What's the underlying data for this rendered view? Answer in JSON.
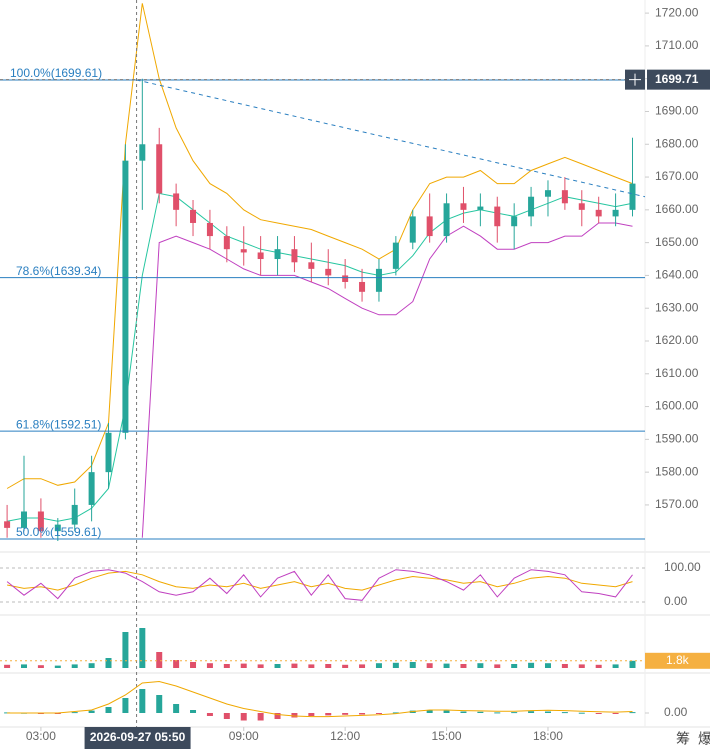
{
  "chart_data": [
    {
      "type": "candlestick",
      "xlim": [
        1.79,
        20.87
      ],
      "ylim": [
        1559,
        1724
      ],
      "xticks": [
        {
          "value": 3,
          "label": "03:00"
        },
        {
          "value": 9,
          "label": "09:00"
        },
        {
          "value": 12,
          "label": "12:00"
        },
        {
          "value": 15,
          "label": "15:00"
        },
        {
          "value": 18,
          "label": "18:00"
        }
      ],
      "yticks": [
        {
          "value": 1570,
          "label": "1570.00"
        },
        {
          "value": 1580,
          "label": "1580.00"
        },
        {
          "value": 1590,
          "label": "1590.00"
        },
        {
          "value": 1600,
          "label": "1600.00"
        },
        {
          "value": 1610,
          "label": "1610.00"
        },
        {
          "value": 1620,
          "label": "1620.00"
        },
        {
          "value": 1630,
          "label": "1630.00"
        },
        {
          "value": 1640,
          "label": "1640.00"
        },
        {
          "value": 1650,
          "label": "1650.00"
        },
        {
          "value": 1660,
          "label": "1660.00"
        },
        {
          "value": 1670,
          "label": "1670.00"
        },
        {
          "value": 1680,
          "label": "1680.00"
        },
        {
          "value": 1690,
          "label": "1690.00"
        },
        {
          "value": 1700,
          "label": "1700.00"
        },
        {
          "value": 1710,
          "label": "1710.00"
        },
        {
          "value": 1720,
          "label": "1720.00"
        }
      ],
      "up_color": "#26a69a",
      "down_color": "#e0506a",
      "x": [
        2,
        2.5,
        3,
        3.5,
        4,
        4.5,
        5,
        5.5,
        6,
        6.5,
        7,
        7.5,
        8,
        8.5,
        9,
        9.5,
        10,
        10.5,
        11,
        11.5,
        12,
        12.5,
        13,
        13.5,
        14,
        14.5,
        15,
        15.5,
        16,
        16.5,
        17,
        17.5,
        18,
        18.5,
        19,
        19.5,
        20,
        20.5
      ],
      "open": [
        1565,
        1563,
        1568,
        1562,
        1564,
        1570,
        1580,
        1592,
        1675,
        1680,
        1665,
        1660,
        1656,
        1652,
        1648,
        1647,
        1645,
        1648,
        1644,
        1642,
        1640,
        1638,
        1635,
        1642,
        1650,
        1658,
        1652,
        1662,
        1660,
        1661,
        1655,
        1658,
        1664,
        1666,
        1662,
        1660,
        1658,
        1660
      ],
      "high": [
        1570,
        1585,
        1572,
        1566,
        1575,
        1585,
        1595,
        1680,
        1700,
        1685,
        1668,
        1663,
        1660,
        1655,
        1655,
        1652,
        1652,
        1652,
        1650,
        1648,
        1645,
        1642,
        1645,
        1652,
        1660,
        1665,
        1665,
        1667,
        1665,
        1664,
        1662,
        1667,
        1669,
        1670,
        1666,
        1664,
        1665,
        1682
      ],
      "low": [
        1560,
        1562,
        1560,
        1559,
        1562,
        1565,
        1575,
        1590,
        1660,
        1662,
        1655,
        1652,
        1648,
        1644,
        1643,
        1640,
        1640,
        1641,
        1638,
        1637,
        1636,
        1632,
        1632,
        1640,
        1648,
        1650,
        1650,
        1656,
        1655,
        1650,
        1648,
        1655,
        1658,
        1660,
        1655,
        1656,
        1655,
        1658
      ],
      "close": [
        1563,
        1568,
        1562,
        1564,
        1570,
        1580,
        1592,
        1675,
        1680,
        1665,
        1660,
        1656,
        1652,
        1648,
        1647,
        1645,
        1648,
        1644,
        1642,
        1640,
        1638,
        1635,
        1642,
        1650,
        1658,
        1652,
        1662,
        1660,
        1661,
        1655,
        1658,
        1664,
        1666,
        1662,
        1660,
        1658,
        1660,
        1668
      ],
      "lines": [
        {
          "color": "#f0a800",
          "values": [
            1575,
            1578,
            1578,
            1576,
            1577,
            1582,
            1595,
            1680,
            1723,
            1700,
            1685,
            1675,
            1668,
            1665,
            1660,
            1657,
            1656,
            1655,
            1654,
            1652,
            1650,
            1648,
            1645,
            1648,
            1660,
            1668,
            1670,
            1670,
            1672,
            1668,
            1668,
            1672,
            1674,
            1676,
            1674,
            1672,
            1670,
            1668
          ]
        },
        {
          "color": "#26c6a0",
          "values": [
            1565,
            1566,
            1566,
            1565,
            1566,
            1569,
            1575,
            1600,
            1640,
            1665,
            1664,
            1660,
            1656,
            1652,
            1650,
            1648,
            1647,
            1646,
            1645,
            1644,
            1643,
            1641,
            1640,
            1641,
            1646,
            1653,
            1657,
            1659,
            1660,
            1659,
            1658,
            1660,
            1662,
            1664,
            1663,
            1662,
            1661,
            1662
          ]
        },
        {
          "color": "#c040c0",
          "values": [
            null,
            null,
            null,
            null,
            null,
            null,
            null,
            null,
            1560,
            1650,
            1652,
            1650,
            1648,
            1645,
            1642,
            1640,
            1640,
            1640,
            1638,
            1636,
            1633,
            1630,
            1628,
            1628,
            1632,
            1645,
            1652,
            1655,
            1652,
            1648,
            1648,
            1650,
            1650,
            1652,
            1652,
            1656,
            1656,
            1655
          ]
        }
      ],
      "fib_color": "#2a7fc0",
      "fib_levels": [
        {
          "value": 1699.61,
          "label": "100.0%(1699.61)"
        },
        {
          "value": 1639.34,
          "label": "78.6%(1639.34)"
        },
        {
          "value": 1592.51,
          "label": "61.8%(1592.51)"
        },
        {
          "value": 1559.61,
          "label": "50.0%(1559.61)"
        }
      ],
      "trendline": {
        "x": [
          5.83,
          20.87
        ],
        "y": [
          1699.61,
          1664
        ]
      },
      "crosshair": {
        "x": {
          "value": 5.83,
          "label": "2026-09-27 05:50"
        },
        "y": 1699.71
      }
    },
    {
      "type": "line",
      "xlim": [
        1.79,
        20.87
      ],
      "ylim": [
        -23.5,
        123.5
      ],
      "yticks": [
        {
          "value": 100,
          "label": "100.00"
        },
        {
          "value": 0,
          "label": "0.00"
        }
      ],
      "x": [
        2,
        2.5,
        3,
        3.5,
        4,
        4.5,
        5,
        5.5,
        6,
        6.5,
        7,
        7.5,
        8,
        8.5,
        9,
        9.5,
        10,
        10.5,
        11,
        11.5,
        12,
        12.5,
        13,
        13.5,
        14,
        14.5,
        15,
        15.5,
        16,
        16.5,
        17,
        17.5,
        18,
        18.5,
        19,
        19.5,
        20,
        20.5
      ],
      "series": [
        {
          "color": "#f0a800",
          "values": [
            50,
            40,
            45,
            35,
            50,
            70,
            85,
            90,
            80,
            60,
            45,
            40,
            50,
            45,
            55,
            40,
            50,
            60,
            45,
            55,
            40,
            35,
            50,
            65,
            75,
            70,
            65,
            55,
            60,
            45,
            55,
            70,
            75,
            70,
            55,
            50,
            45,
            60
          ]
        },
        {
          "color": "#c040c0",
          "values": [
            60,
            20,
            55,
            10,
            70,
            90,
            95,
            85,
            60,
            30,
            20,
            30,
            70,
            25,
            80,
            15,
            70,
            90,
            20,
            80,
            10,
            5,
            70,
            95,
            90,
            80,
            60,
            35,
            80,
            15,
            70,
            95,
            90,
            80,
            30,
            25,
            15,
            80
          ]
        }
      ]
    },
    {
      "type": "bar",
      "xlim": [
        1.79,
        20.87
      ],
      "ylim": [
        0,
        12000
      ],
      "x": [
        2,
        2.5,
        3,
        3.5,
        4,
        4.5,
        5,
        5.5,
        6,
        6.5,
        7,
        7.5,
        8,
        8.5,
        9,
        9.5,
        10,
        10.5,
        11,
        11.5,
        12,
        12.5,
        13,
        13.5,
        14,
        14.5,
        15,
        15.5,
        16,
        16.5,
        17,
        17.5,
        18,
        18.5,
        19,
        19.5,
        20,
        20.5
      ],
      "values": [
        800,
        900,
        700,
        600,
        900,
        1200,
        2500,
        9000,
        10000,
        4000,
        2000,
        1500,
        1200,
        1000,
        1100,
        900,
        1000,
        1100,
        900,
        1000,
        800,
        900,
        1200,
        1300,
        1500,
        1200,
        1100,
        1000,
        1200,
        900,
        1000,
        1300,
        1200,
        1000,
        900,
        800,
        900,
        1800
      ],
      "current": {
        "value": 1800,
        "label": "1.8k"
      },
      "current_color": "#f5b041"
    },
    {
      "type": "bar",
      "xlim": [
        1.79,
        20.87
      ],
      "ylim": [
        -4,
        11
      ],
      "yticks": [
        {
          "value": 0,
          "label": "0.00"
        }
      ],
      "x": [
        2,
        2.5,
        3,
        3.5,
        4,
        4.5,
        5,
        5.5,
        6,
        6.5,
        7,
        7.5,
        8,
        8.5,
        9,
        9.5,
        10,
        10.5,
        11,
        11.5,
        12,
        12.5,
        13,
        13.5,
        14,
        14.5,
        15,
        15.5,
        16,
        16.5,
        17,
        17.5,
        18,
        18.5,
        19,
        19.5,
        20,
        20.5
      ],
      "values": [
        0.2,
        0.1,
        -0.1,
        -0.2,
        0.3,
        0.8,
        2,
        5,
        8,
        6,
        3,
        1,
        -1,
        -2,
        -2.5,
        -2.5,
        -2,
        -1.5,
        -1,
        -0.8,
        -0.6,
        -0.5,
        -0.3,
        0.2,
        0.8,
        1,
        0.8,
        0.5,
        0.4,
        0.2,
        0.3,
        0.6,
        0.5,
        0.3,
        0.1,
        -0.1,
        -0.2,
        0.3
      ],
      "series": [
        {
          "color": "#f0a800",
          "values": [
            0,
            0,
            0,
            0,
            0.5,
            1,
            3,
            6,
            10,
            10.5,
            9,
            7,
            5,
            3,
            1.5,
            0.5,
            -0.5,
            -1,
            -1.2,
            -1.2,
            -1,
            -0.8,
            -0.6,
            -0.2,
            0.5,
            1,
            1,
            0.8,
            0.7,
            0.6,
            0.6,
            0.8,
            0.9,
            0.8,
            0.6,
            0.4,
            0.3,
            0.5
          ]
        }
      ]
    }
  ],
  "toolbar": [
    "筹",
    "爆"
  ]
}
